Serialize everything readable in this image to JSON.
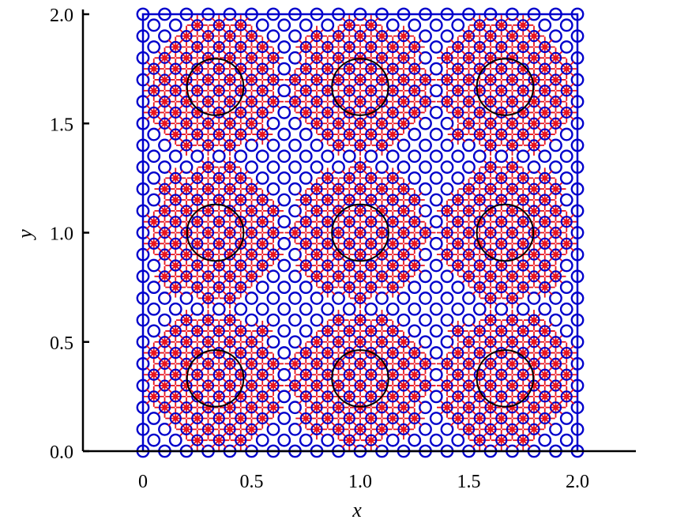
{
  "chart_data": {
    "type": "scatter",
    "title": "",
    "xlabel": "x",
    "ylabel": "y",
    "xlim": [
      -0.28,
      2.28
    ],
    "ylim": [
      0,
      2
    ],
    "xticks": [
      0,
      0.5,
      1.0,
      1.5,
      2.0
    ],
    "xtick_labels": [
      "0",
      "0.5",
      "1.0",
      "1.5",
      "2.0"
    ],
    "yticks": [
      0,
      0.5,
      1.0,
      1.5,
      2.0
    ],
    "ytick_labels": [
      "0.0",
      "0.5",
      "1.0",
      "1.5",
      "2.0"
    ],
    "grid": false,
    "legend": "none",
    "domain_box": {
      "x": [
        0,
        2
      ],
      "y": [
        0,
        2
      ],
      "color": "#0000cc"
    },
    "series": [
      {
        "marker": "circle-open",
        "color": "#0000cc",
        "description_grid": {
          "x_start": 0,
          "x_end": 2,
          "y_start": 0,
          "y_end": 2,
          "step": 0.1,
          "offset_rows_step": 0.05
        }
      },
      {
        "marker": "star",
        "color": "#e8141e",
        "enriched_near_centers": true
      }
    ],
    "circles": [
      {
        "cx": 0.333,
        "cy": 0.333,
        "r": 0.13
      },
      {
        "cx": 1.0,
        "cy": 0.333,
        "r": 0.13
      },
      {
        "cx": 1.667,
        "cy": 0.333,
        "r": 0.13
      },
      {
        "cx": 0.333,
        "cy": 1.0,
        "r": 0.13
      },
      {
        "cx": 1.0,
        "cy": 1.0,
        "r": 0.13
      },
      {
        "cx": 1.667,
        "cy": 1.0,
        "r": 0.13
      },
      {
        "cx": 0.333,
        "cy": 1.667,
        "r": 0.13
      },
      {
        "cx": 1.0,
        "cy": 1.667,
        "r": 0.13
      },
      {
        "cx": 1.667,
        "cy": 1.667,
        "r": 0.13
      }
    ],
    "circle_color": "#000000",
    "enrichment_radius": 0.31
  }
}
